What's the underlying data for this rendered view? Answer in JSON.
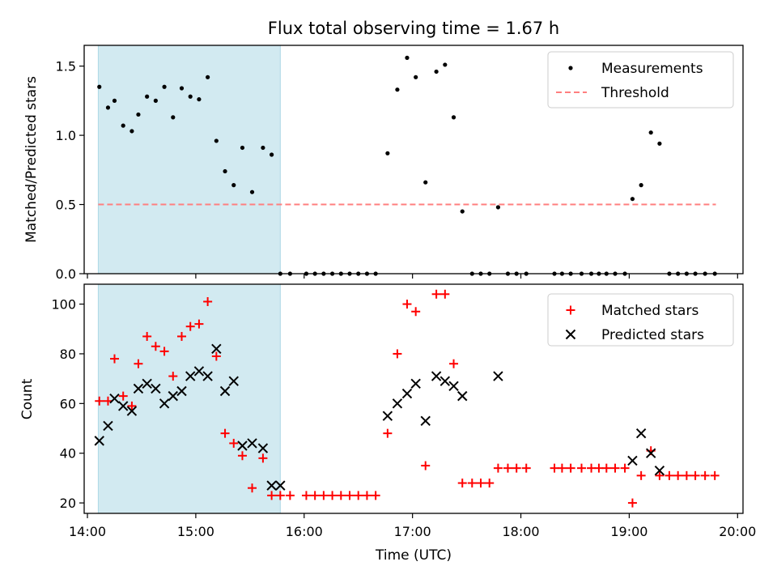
{
  "chart_data": {
    "title": "Flux total observing time = 1.67 h",
    "xlabel": "Time (UTC)",
    "xticks": [
      "14:00",
      "15:00",
      "16:00",
      "17:00",
      "18:00",
      "19:00",
      "20:00"
    ],
    "xlim_hours": [
      13.97,
      20.05
    ],
    "shaded_span_hours": [
      14.1,
      15.78
    ],
    "shade_color": "#add8e6",
    "panels": [
      {
        "type": "scatter",
        "ylabel": "Matched/Predicted stars",
        "ylim": [
          0,
          1.65
        ],
        "yticks": [
          "0.0",
          "0.5",
          "1.0",
          "1.5"
        ],
        "legend": [
          "Measurements",
          "Threshold"
        ],
        "legend_position": "top-right",
        "threshold": {
          "label": "Threshold",
          "value": 0.5,
          "x_from": 14.1,
          "x_to": 19.8,
          "color": "#ff7f7f"
        },
        "series": [
          {
            "name": "Measurements",
            "marker": "dot",
            "color": "#000000",
            "x": [
              14.11,
              14.19,
              14.25,
              14.33,
              14.41,
              14.47,
              14.55,
              14.63,
              14.71,
              14.79,
              14.87,
              14.95,
              15.03,
              15.11,
              15.19,
              15.27,
              15.35,
              15.43,
              15.52,
              15.62,
              15.7,
              15.78,
              15.87,
              16.02,
              16.1,
              16.18,
              16.26,
              16.34,
              16.42,
              16.5,
              16.58,
              16.66,
              16.77,
              16.86,
              16.95,
              17.03,
              17.12,
              17.22,
              17.3,
              17.38,
              17.46,
              17.55,
              17.63,
              17.71,
              17.79,
              17.88,
              17.96,
              18.05,
              18.31,
              18.38,
              18.46,
              18.56,
              18.65,
              18.72,
              18.79,
              18.87,
              18.96,
              19.03,
              19.11,
              19.2,
              19.28,
              19.37,
              19.45,
              19.53,
              19.61,
              19.7,
              19.79
            ],
            "y": [
              1.35,
              1.2,
              1.25,
              1.07,
              1.03,
              1.15,
              1.28,
              1.25,
              1.35,
              1.13,
              1.34,
              1.28,
              1.26,
              1.42,
              0.96,
              0.74,
              0.64,
              0.91,
              0.59,
              0.91,
              0.86,
              0,
              0,
              0,
              0,
              0,
              0,
              0,
              0,
              0,
              0,
              0,
              0.87,
              1.33,
              1.56,
              1.42,
              0.66,
              1.46,
              1.51,
              1.13,
              0.45,
              0,
              0,
              0,
              0.48,
              0,
              0,
              0,
              0,
              0,
              0,
              0,
              0,
              0,
              0,
              0,
              0,
              0.54,
              0.64,
              1.02,
              0.94,
              0,
              0,
              0,
              0,
              0,
              0
            ]
          }
        ]
      },
      {
        "type": "scatter",
        "ylabel": "Count",
        "ylim": [
          15.8,
          108
        ],
        "yticks": [
          "20",
          "40",
          "60",
          "80",
          "100"
        ],
        "legend": [
          "Matched stars",
          "Predicted stars"
        ],
        "legend_position": "top-right",
        "series": [
          {
            "name": "Matched stars",
            "marker": "plus",
            "color": "#ff0000",
            "x": [
              14.11,
              14.19,
              14.25,
              14.33,
              14.41,
              14.47,
              14.55,
              14.63,
              14.71,
              14.79,
              14.87,
              14.95,
              15.03,
              15.11,
              15.19,
              15.27,
              15.35,
              15.43,
              15.52,
              15.62,
              15.7,
              15.78,
              15.87,
              16.02,
              16.1,
              16.18,
              16.26,
              16.34,
              16.42,
              16.5,
              16.58,
              16.66,
              16.77,
              16.86,
              16.95,
              17.03,
              17.12,
              17.22,
              17.3,
              17.38,
              17.46,
              17.55,
              17.63,
              17.71,
              17.79,
              17.88,
              17.96,
              18.05,
              18.31,
              18.38,
              18.46,
              18.56,
              18.65,
              18.72,
              18.79,
              18.87,
              18.96,
              19.03,
              19.11,
              19.2,
              19.28,
              19.37,
              19.45,
              19.53,
              19.61,
              19.7,
              19.79
            ],
            "y": [
              61,
              61,
              78,
              63,
              59,
              76,
              87,
              83,
              81,
              71,
              87,
              91,
              92,
              101,
              79,
              48,
              44,
              39,
              26,
              38,
              23,
              23,
              23,
              23,
              23,
              23,
              23,
              23,
              23,
              23,
              23,
              23,
              48,
              80,
              100,
              97,
              35,
              104,
              104,
              76,
              28,
              28,
              28,
              28,
              34,
              34,
              34,
              34,
              34,
              34,
              34,
              34,
              34,
              34,
              34,
              34,
              34,
              20,
              31,
              41,
              31,
              31,
              31,
              31,
              31,
              31,
              31
            ]
          },
          {
            "name": "Predicted stars",
            "marker": "x",
            "color": "#000000",
            "x": [
              14.11,
              14.19,
              14.25,
              14.33,
              14.41,
              14.47,
              14.55,
              14.63,
              14.71,
              14.79,
              14.87,
              14.95,
              15.03,
              15.11,
              15.19,
              15.27,
              15.35,
              15.43,
              15.52,
              15.62,
              15.7,
              15.78,
              16.77,
              16.86,
              16.95,
              17.03,
              17.12,
              17.22,
              17.3,
              17.38,
              17.46,
              17.79,
              19.03,
              19.11,
              19.2,
              19.28
            ],
            "y": [
              45,
              51,
              62,
              59,
              57,
              66,
              68,
              66,
              60,
              63,
              65,
              71,
              73,
              71,
              82,
              65,
              69,
              43,
              44,
              42,
              27,
              27,
              55,
              60,
              64,
              68,
              53,
              71,
              69,
              67,
              63,
              71,
              37,
              48,
              40,
              33
            ]
          }
        ]
      }
    ]
  }
}
